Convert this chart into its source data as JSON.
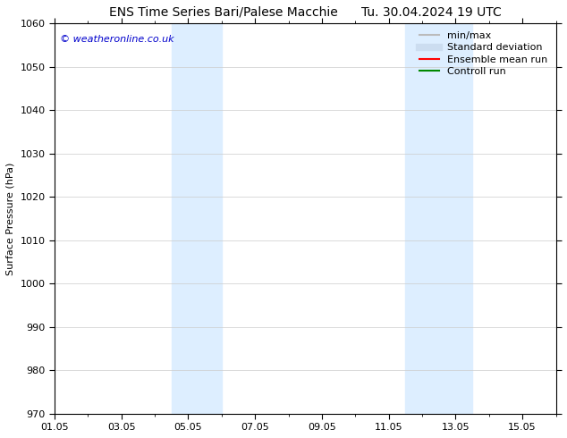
{
  "title_left": "ENS Time Series Bari/Palese Macchie",
  "title_right": "Tu. 30.04.2024 19 UTC",
  "ylabel": "Surface Pressure (hPa)",
  "xlabel": "",
  "ylim": [
    970,
    1060
  ],
  "yticks": [
    970,
    980,
    990,
    1000,
    1010,
    1020,
    1030,
    1040,
    1050,
    1060
  ],
  "xlim": [
    0,
    15
  ],
  "xtick_labels": [
    "01.05",
    "03.05",
    "05.05",
    "07.05",
    "09.05",
    "11.05",
    "13.05",
    "15.05"
  ],
  "xtick_positions": [
    0,
    2,
    4,
    6,
    8,
    10,
    12,
    14
  ],
  "shade_regions": [
    {
      "x_start": 3.5,
      "x_end": 5.0,
      "color": "#ddeeff"
    },
    {
      "x_start": 10.5,
      "x_end": 12.5,
      "color": "#ddeeff"
    }
  ],
  "watermark_text": "© weatheronline.co.uk",
  "watermark_color": "#0000cc",
  "watermark_fontsize": 8,
  "background_color": "#ffffff",
  "legend_items": [
    {
      "label": "min/max",
      "color": "#bbbbbb",
      "lw": 1.5,
      "style": "solid"
    },
    {
      "label": "Standard deviation",
      "color": "#ccddf0",
      "lw": 6,
      "style": "solid"
    },
    {
      "label": "Ensemble mean run",
      "color": "#ff0000",
      "lw": 1.5,
      "style": "solid"
    },
    {
      "label": "Controll run",
      "color": "#008800",
      "lw": 1.5,
      "style": "solid"
    }
  ],
  "title_fontsize": 10,
  "axis_label_fontsize": 8,
  "tick_fontsize": 8,
  "legend_fontsize": 8,
  "grid_color": "#cccccc",
  "spine_color": "#000000"
}
